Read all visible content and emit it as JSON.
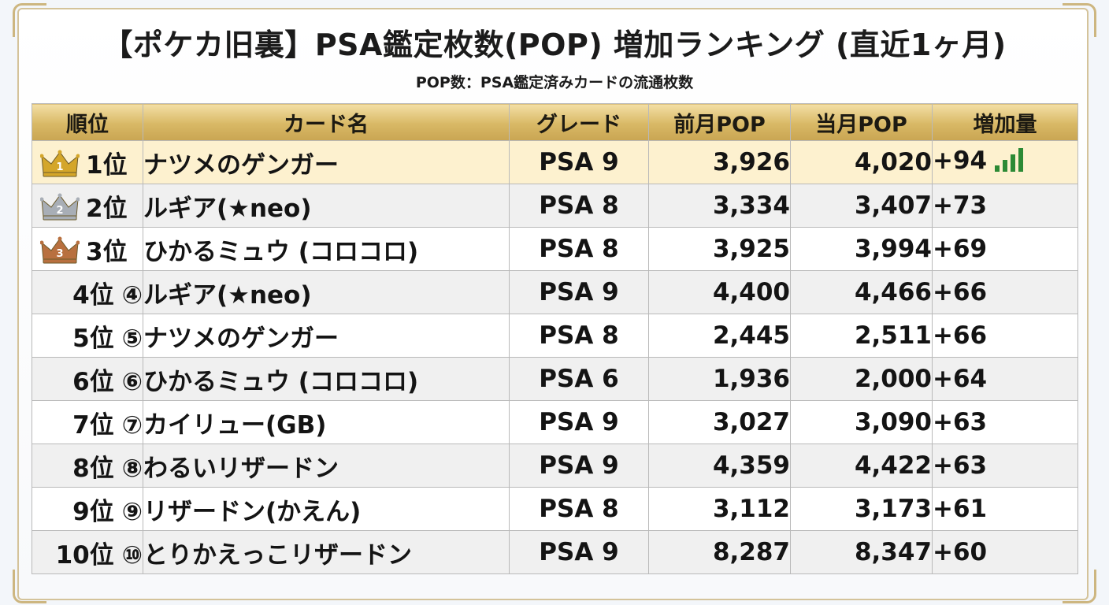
{
  "title": "【ポケカ旧裏】PSA鑑定枚数(POP) 増加ランキング (直近1ヶ月)",
  "subtitle": "POP数：PSA鑑定済みカードの流通枚数",
  "columns": {
    "rank": "順位",
    "card": "カード名",
    "grade": "グレード",
    "prev": "前月POP",
    "curr": "当月POP",
    "inc": "増加量"
  },
  "colors": {
    "gold": "#d4a62a",
    "silver": "#a8aeb6",
    "bronze": "#b8703f",
    "increase": "#2c8a35"
  },
  "rows": [
    {
      "rank": "1位",
      "medal": "1",
      "crown": "gold-crown-icon",
      "name": "ナツメのゲンガー",
      "grade": "PSA 9",
      "prev": "3,926",
      "curr": "4,020",
      "inc": "+94"
    },
    {
      "rank": "2位",
      "medal": "2",
      "crown": "silver-crown-icon",
      "name": "ルギア(★neo)",
      "grade": "PSA 8",
      "prev": "3,334",
      "curr": "3,407",
      "inc": "+73"
    },
    {
      "rank": "3位",
      "medal": "3",
      "crown": "bronze-crown-icon",
      "name": "ひかるミュウ (コロコロ)",
      "grade": "PSA 8",
      "prev": "3,925",
      "curr": "3,994",
      "inc": "+69"
    },
    {
      "rank": "4位",
      "mark": "④",
      "name": "ルギア(★neo)",
      "grade": "PSA 9",
      "prev": "4,400",
      "curr": "4,466",
      "inc": "+66"
    },
    {
      "rank": "5位",
      "mark": "⑤",
      "name": "ナツメのゲンガー",
      "grade": "PSA 8",
      "prev": "2,445",
      "curr": "2,511",
      "inc": "+66"
    },
    {
      "rank": "6位",
      "mark": "⑥",
      "name": "ひかるミュウ (コロコロ)",
      "grade": "PSA 6",
      "prev": "1,936",
      "curr": "2,000",
      "inc": "+64"
    },
    {
      "rank": "7位",
      "mark": "⑦",
      "name": "カイリュー(GB)",
      "grade": "PSA 9",
      "prev": "3,027",
      "curr": "3,090",
      "inc": "+63"
    },
    {
      "rank": "8位",
      "mark": "⑧",
      "name": "わるいリザードン",
      "grade": "PSA 9",
      "prev": "4,359",
      "curr": "4,422",
      "inc": "+63"
    },
    {
      "rank": "9位",
      "mark": "⑨",
      "name": "リザードン(かえん)",
      "grade": "PSA 8",
      "prev": "3,112",
      "curr": "3,173",
      "inc": "+61"
    },
    {
      "rank": "10位",
      "mark": "⑩",
      "name": "とりかえっこリザードン",
      "grade": "PSA 9",
      "prev": "8,287",
      "curr": "8,347",
      "inc": "+60"
    }
  ],
  "top_row_icon": "signal-bars-icon"
}
